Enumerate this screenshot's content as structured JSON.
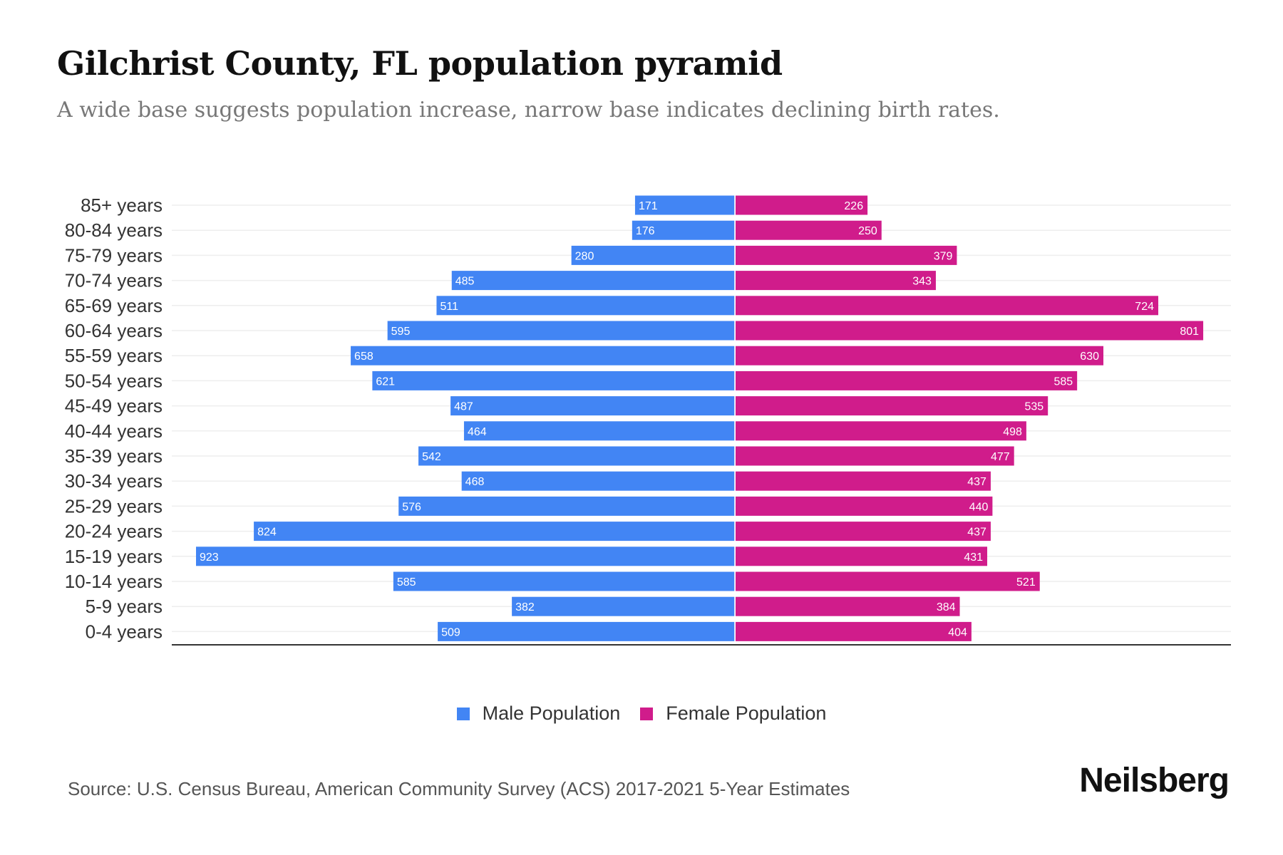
{
  "title": "Gilchrist County, FL population pyramid",
  "subtitle": "A wide base suggests population increase, narrow base indicates declining birth rates.",
  "source": "Source: U.S. Census Bureau, American Community Survey (ACS) 2017-2021 5-Year Estimates",
  "logo": "Neilsberg",
  "colors": {
    "male": "#4285f4",
    "female": "#d01c8b"
  },
  "chart_data": {
    "type": "bar",
    "orientation": "horizontal-pyramid",
    "title": "Gilchrist County, FL population pyramid",
    "categories": [
      "85+ years",
      "80-84 years",
      "75-79 years",
      "70-74 years",
      "65-69 years",
      "60-64 years",
      "55-59 years",
      "50-54 years",
      "45-49 years",
      "40-44 years",
      "35-39 years",
      "30-34 years",
      "25-29 years",
      "20-24 years",
      "15-19 years",
      "10-14 years",
      "5-9 years",
      "0-4 years"
    ],
    "series": [
      {
        "name": "Male Population",
        "values": [
          171,
          176,
          280,
          485,
          511,
          595,
          658,
          621,
          487,
          464,
          542,
          468,
          576,
          824,
          923,
          585,
          382,
          509
        ]
      },
      {
        "name": "Female Population",
        "values": [
          226,
          250,
          379,
          343,
          724,
          801,
          630,
          585,
          535,
          498,
          477,
          437,
          440,
          437,
          431,
          521,
          384,
          404
        ]
      }
    ],
    "xlim": [
      -923,
      923
    ],
    "legend": "bottom-center",
    "grid": true
  }
}
